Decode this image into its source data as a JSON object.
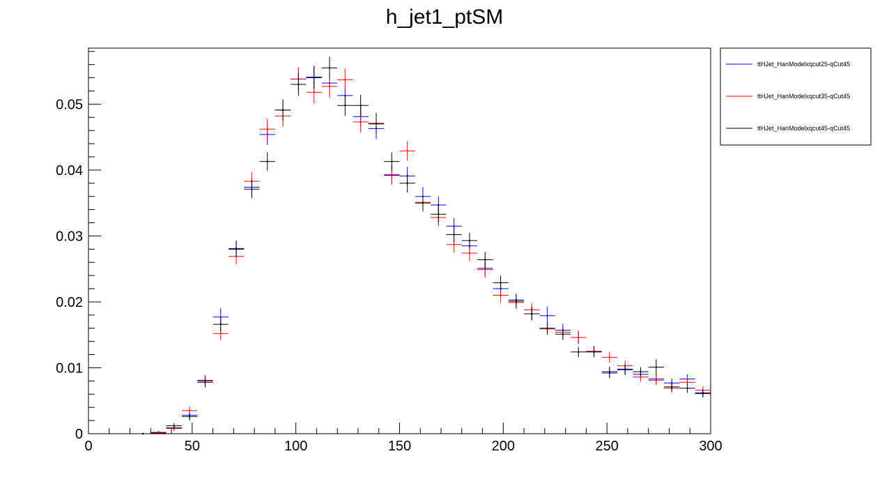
{
  "chart_data": {
    "type": "scatter",
    "title": "h_jet1_ptSM",
    "xlabel": "",
    "ylabel": "",
    "xlim": [
      0,
      300
    ],
    "ylim": [
      0,
      0.0585
    ],
    "x_ticks": [
      0,
      50,
      100,
      150,
      200,
      250,
      300
    ],
    "x_tick_labels": [
      "0",
      "50",
      "100",
      "150",
      "200",
      "250",
      "300"
    ],
    "y_ticks": [
      0,
      0.01,
      0.02,
      0.03,
      0.04,
      0.05
    ],
    "y_tick_labels": [
      "0",
      "0.01",
      "0.02",
      "0.03",
      "0.04",
      "0.05"
    ],
    "bin_width": 7.5,
    "grid": false,
    "legend_position": "top-right outside",
    "x": [
      26.25,
      33.75,
      41.25,
      48.75,
      56.25,
      63.75,
      71.25,
      78.75,
      86.25,
      93.75,
      101.25,
      108.75,
      116.25,
      123.75,
      131.25,
      138.75,
      146.25,
      153.75,
      161.25,
      168.75,
      176.25,
      183.75,
      191.25,
      198.75,
      206.25,
      213.75,
      221.25,
      228.75,
      236.25,
      243.75,
      251.25,
      258.75,
      266.25,
      273.75,
      281.25,
      288.75,
      296.25
    ],
    "series": [
      {
        "name": "ttHJet_HanModelxqcut25-qCut45",
        "color": "#0000ff",
        "values": [
          0.0,
          0.0002,
          0.0009,
          0.0028,
          0.0081,
          0.0177,
          0.0281,
          0.0374,
          0.0454,
          0.0491,
          0.0538,
          0.0541,
          0.0532,
          0.0513,
          0.0481,
          0.0463,
          0.0392,
          0.0391,
          0.036,
          0.0347,
          0.0315,
          0.0285,
          0.0251,
          0.022,
          0.0203,
          0.0182,
          0.0179,
          0.0157,
          0.0146,
          0.0125,
          0.0092,
          0.0098,
          0.009,
          0.0083,
          0.0077,
          0.0083,
          0.0062
        ],
        "errors": [
          0.0001,
          0.0002,
          0.0004,
          0.0006,
          0.0008,
          0.0013,
          0.0012,
          0.0014,
          0.0016,
          0.0016,
          0.0017,
          0.0017,
          0.0017,
          0.0016,
          0.0016,
          0.0016,
          0.0014,
          0.0014,
          0.0014,
          0.0013,
          0.0012,
          0.0012,
          0.0012,
          0.0011,
          0.001,
          0.001,
          0.0014,
          0.001,
          0.001,
          0.0008,
          0.0008,
          0.0008,
          0.0008,
          0.0008,
          0.0007,
          0.0007,
          0.0006
        ]
      },
      {
        "name": "ttHJet_HanModelxqcut35-qCut45",
        "color": "#ff0000",
        "values": [
          0.0,
          0.0002,
          0.0008,
          0.0035,
          0.008,
          0.0152,
          0.0269,
          0.0383,
          0.0462,
          0.0482,
          0.0538,
          0.0518,
          0.0527,
          0.0537,
          0.0473,
          0.0471,
          0.0393,
          0.0429,
          0.0351,
          0.0328,
          0.0287,
          0.0274,
          0.0249,
          0.021,
          0.0199,
          0.0188,
          0.0159,
          0.0154,
          0.0146,
          0.0125,
          0.0116,
          0.0103,
          0.0086,
          0.0081,
          0.0069,
          0.0078,
          0.0066
        ],
        "errors": [
          0.0001,
          0.0002,
          0.0004,
          0.0006,
          0.0008,
          0.001,
          0.0012,
          0.0014,
          0.0016,
          0.0016,
          0.0018,
          0.0017,
          0.0017,
          0.0017,
          0.0016,
          0.0016,
          0.0014,
          0.0015,
          0.0014,
          0.0013,
          0.0012,
          0.0012,
          0.0012,
          0.0011,
          0.001,
          0.001,
          0.0009,
          0.0009,
          0.0009,
          0.0008,
          0.0008,
          0.0008,
          0.0007,
          0.0007,
          0.0007,
          0.0007,
          0.0006
        ]
      },
      {
        "name": "ttHJet_HanModelxqcut45-qCut45",
        "color": "#000000",
        "values": [
          0.0,
          0.0001,
          0.0012,
          0.0026,
          0.0078,
          0.0166,
          0.028,
          0.0371,
          0.0413,
          0.0491,
          0.053,
          0.054,
          0.0555,
          0.0498,
          0.0498,
          0.047,
          0.0413,
          0.038,
          0.035,
          0.0333,
          0.0302,
          0.0293,
          0.0264,
          0.0229,
          0.0201,
          0.0182,
          0.016,
          0.0151,
          0.0124,
          0.0124,
          0.0094,
          0.0097,
          0.0094,
          0.0101,
          0.0071,
          0.0069,
          0.0061
        ],
        "errors": [
          0.0001,
          0.0002,
          0.0004,
          0.0006,
          0.0008,
          0.0011,
          0.0012,
          0.0014,
          0.0014,
          0.0016,
          0.0017,
          0.0017,
          0.0017,
          0.0016,
          0.0016,
          0.0016,
          0.0014,
          0.0014,
          0.0013,
          0.0013,
          0.0012,
          0.0012,
          0.0012,
          0.0011,
          0.001,
          0.001,
          0.0009,
          0.0009,
          0.0008,
          0.0008,
          0.0008,
          0.0008,
          0.0007,
          0.0012,
          0.0007,
          0.0007,
          0.0006
        ]
      }
    ]
  }
}
